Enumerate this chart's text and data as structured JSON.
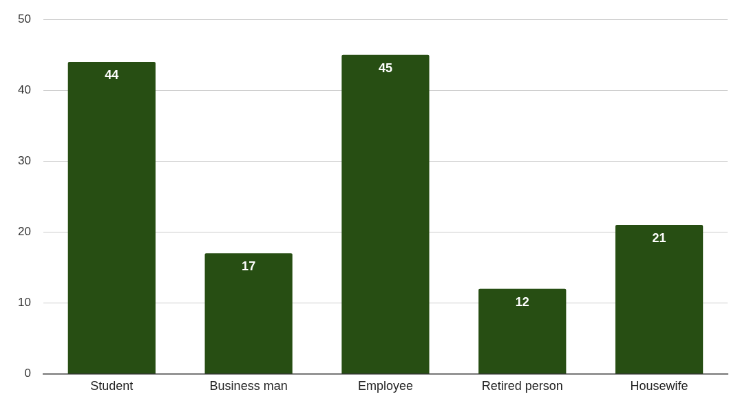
{
  "chart_data": {
    "type": "bar",
    "categories": [
      "Student",
      "Business man",
      "Employee",
      "Retired person",
      "Housewife"
    ],
    "values": [
      44,
      17,
      45,
      12,
      21
    ],
    "color": "#274e13",
    "ylim": [
      0,
      50
    ],
    "yticks": [
      0,
      10,
      20,
      30,
      40,
      50
    ],
    "grid": "y",
    "data_labels": true,
    "legend": false
  }
}
